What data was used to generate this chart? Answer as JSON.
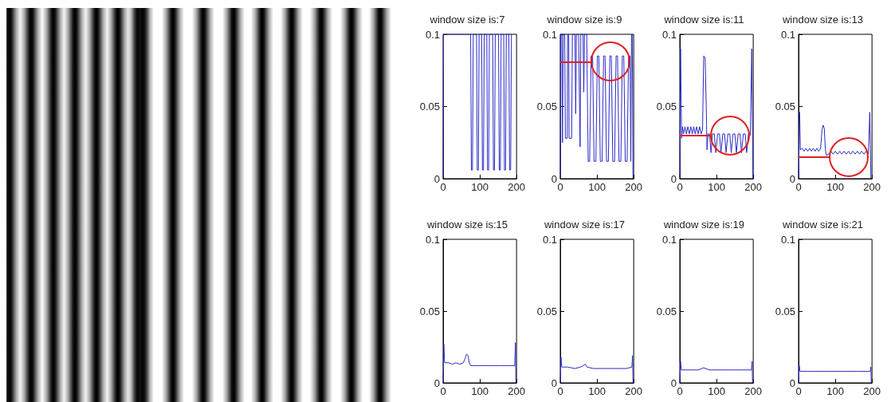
{
  "chart_data": [
    {
      "type": "line",
      "title": "window size is:7",
      "color": "#2b2bc8",
      "xlim": [
        0,
        200
      ],
      "ylim": [
        0,
        0.1
      ],
      "xticks": [
        0,
        100,
        200
      ],
      "yticks": [
        0,
        0.05,
        0.1
      ],
      "grid": false,
      "x": [
        0,
        1,
        75,
        77,
        80,
        82,
        91,
        93,
        96,
        98,
        105,
        107,
        110,
        112,
        119,
        121,
        124,
        126,
        135,
        137,
        140,
        142,
        151,
        153,
        156,
        158,
        165,
        167,
        170,
        172,
        179,
        181,
        184,
        186
      ],
      "values": [
        0,
        0.1,
        0.1,
        0.006,
        0.006,
        0.1,
        0.1,
        0.006,
        0.006,
        0.1,
        0.1,
        0.006,
        0.006,
        0.1,
        0.1,
        0.006,
        0.006,
        0.1,
        0.1,
        0.006,
        0.006,
        0.1,
        0.1,
        0.006,
        0.006,
        0.1,
        0.1,
        0.006,
        0.006,
        0.1,
        0.1,
        0.006,
        0.006,
        0.1
      ]
    },
    {
      "type": "line",
      "title": "window size is:9",
      "color": "#2b2bc8",
      "xlim": [
        0,
        200
      ],
      "ylim": [
        0,
        0.1
      ],
      "xticks": [
        0,
        100,
        200
      ],
      "yticks": [
        0,
        0.05,
        0.1
      ],
      "grid": false,
      "x": [
        0,
        1,
        4,
        6,
        8,
        12,
        14,
        19,
        20,
        23,
        24,
        31,
        33,
        40,
        42,
        44,
        50,
        54,
        56,
        62,
        64,
        66,
        72,
        76,
        80,
        84,
        88,
        92,
        97,
        101,
        105,
        109,
        114,
        118,
        122,
        126,
        131,
        135,
        139,
        143,
        148,
        152,
        156,
        160,
        165,
        169,
        173,
        177,
        182,
        186,
        190,
        192,
        194,
        196,
        198
      ],
      "values": [
        0,
        0.1,
        0.1,
        0.025,
        0.1,
        0.1,
        0.028,
        0.028,
        0.1,
        0.1,
        0.028,
        0.028,
        0.1,
        0.1,
        0.045,
        0.1,
        0.1,
        0.022,
        0.1,
        0.1,
        0.06,
        0.1,
        0.1,
        0.012,
        0.012,
        0.085,
        0.085,
        0.012,
        0.012,
        0.085,
        0.085,
        0.012,
        0.012,
        0.085,
        0.085,
        0.012,
        0.012,
        0.085,
        0.085,
        0.012,
        0.012,
        0.085,
        0.085,
        0.012,
        0.012,
        0.085,
        0.085,
        0.012,
        0.012,
        0.085,
        0.085,
        0.012,
        0.1,
        0.1,
        0
      ],
      "ref_lines": [
        {
          "axis": "y",
          "value": 0.081,
          "color": "#e02020"
        }
      ]
    },
    {
      "type": "line",
      "title": "window size is:11",
      "color": "#2b2bc8",
      "xlim": [
        0,
        200
      ],
      "ylim": [
        0,
        0.1
      ],
      "xticks": [
        0,
        100,
        200
      ],
      "yticks": [
        0,
        0.05,
        0.1
      ],
      "grid": false,
      "x": [
        0,
        2,
        5,
        7,
        10,
        14,
        18,
        22,
        26,
        30,
        34,
        38,
        42,
        46,
        50,
        54,
        58,
        62,
        65,
        69,
        72,
        74,
        77,
        81,
        85,
        89,
        94,
        98,
        103,
        108,
        112,
        117,
        122,
        126,
        131,
        136,
        140,
        145,
        150,
        154,
        159,
        164,
        168,
        173,
        178,
        182,
        187,
        192,
        196,
        199
      ],
      "values": [
        0,
        0.09,
        0.028,
        0.036,
        0.031,
        0.036,
        0.031,
        0.036,
        0.031,
        0.036,
        0.031,
        0.036,
        0.031,
        0.036,
        0.031,
        0.036,
        0.031,
        0.034,
        0.085,
        0.084,
        0.05,
        0.02,
        0.031,
        0.031,
        0.018,
        0.031,
        0.031,
        0.018,
        0.031,
        0.031,
        0.018,
        0.031,
        0.031,
        0.018,
        0.031,
        0.031,
        0.018,
        0.031,
        0.031,
        0.018,
        0.031,
        0.031,
        0.018,
        0.031,
        0.031,
        0.018,
        0.031,
        0.03,
        0.09,
        0
      ],
      "ref_lines": [
        {
          "axis": "y",
          "value": 0.03,
          "color": "#e02020"
        }
      ]
    },
    {
      "type": "line",
      "title": "window size is:13",
      "color": "#2b2bc8",
      "xlim": [
        0,
        200
      ],
      "ylim": [
        0,
        0.1
      ],
      "xticks": [
        0,
        100,
        200
      ],
      "yticks": [
        0,
        0.05,
        0.1
      ],
      "grid": false,
      "x": [
        0,
        3,
        5,
        10,
        15,
        20,
        25,
        30,
        35,
        40,
        45,
        50,
        55,
        60,
        64,
        67,
        70,
        73,
        76,
        82,
        88,
        94,
        100,
        106,
        112,
        118,
        124,
        130,
        136,
        142,
        148,
        154,
        160,
        166,
        172,
        178,
        184,
        190,
        194,
        197
      ],
      "values": [
        0,
        0.046,
        0.02,
        0.021,
        0.019,
        0.021,
        0.019,
        0.021,
        0.019,
        0.021,
        0.019,
        0.021,
        0.019,
        0.021,
        0.034,
        0.037,
        0.035,
        0.02,
        0.016,
        0.017,
        0.019,
        0.017,
        0.019,
        0.017,
        0.019,
        0.017,
        0.019,
        0.017,
        0.019,
        0.017,
        0.019,
        0.017,
        0.019,
        0.017,
        0.019,
        0.017,
        0.019,
        0.017,
        0.046,
        0
      ],
      "ref_lines": [
        {
          "axis": "y",
          "value": 0.015,
          "color": "#e02020"
        }
      ]
    },
    {
      "type": "line",
      "title": "window size is:15",
      "color": "#2b2bc8",
      "xlim": [
        0,
        200
      ],
      "ylim": [
        0,
        0.1
      ],
      "xticks": [
        0,
        100,
        200
      ],
      "yticks": [
        0,
        0.05,
        0.1
      ],
      "grid": false,
      "x": [
        0,
        2,
        4,
        15,
        25,
        35,
        45,
        55,
        60,
        64,
        68,
        71,
        75,
        95,
        115,
        135,
        155,
        175,
        195,
        197,
        198
      ],
      "values": [
        0,
        0.027,
        0.014,
        0.014,
        0.013,
        0.014,
        0.013,
        0.014,
        0.017,
        0.02,
        0.019,
        0.014,
        0.012,
        0.012,
        0.012,
        0.012,
        0.012,
        0.012,
        0.012,
        0.028,
        0
      ]
    },
    {
      "type": "line",
      "title": "window size is:17",
      "color": "#2b2bc8",
      "xlim": [
        0,
        200
      ],
      "ylim": [
        0,
        0.1
      ],
      "xticks": [
        0,
        100,
        200
      ],
      "yticks": [
        0,
        0.05,
        0.1
      ],
      "grid": false,
      "x": [
        0,
        2,
        4,
        20,
        40,
        55,
        63,
        68,
        73,
        90,
        120,
        150,
        180,
        195,
        197,
        198
      ],
      "values": [
        0,
        0.018,
        0.011,
        0.011,
        0.01,
        0.011,
        0.012,
        0.013,
        0.011,
        0.01,
        0.01,
        0.01,
        0.01,
        0.011,
        0.019,
        0
      ]
    },
    {
      "type": "line",
      "title": "window size is:19",
      "color": "#2b2bc8",
      "xlim": [
        0,
        200
      ],
      "ylim": [
        0,
        0.1
      ],
      "xticks": [
        0,
        100,
        200
      ],
      "yticks": [
        0,
        0.05,
        0.1
      ],
      "grid": false,
      "x": [
        0,
        2,
        4,
        30,
        50,
        65,
        80,
        110,
        140,
        170,
        195,
        197,
        198
      ],
      "values": [
        0,
        0.015,
        0.009,
        0.009,
        0.009,
        0.0105,
        0.009,
        0.009,
        0.009,
        0.009,
        0.009,
        0.015,
        0
      ]
    },
    {
      "type": "line",
      "title": "window size is:21",
      "color": "#2b2bc8",
      "xlim": [
        0,
        200
      ],
      "ylim": [
        0,
        0.1
      ],
      "xticks": [
        0,
        100,
        200
      ],
      "yticks": [
        0,
        0.05,
        0.1
      ],
      "grid": false,
      "x": [
        0,
        2,
        4,
        40,
        80,
        120,
        160,
        195,
        197,
        198
      ],
      "values": [
        0,
        0.012,
        0.008,
        0.008,
        0.008,
        0.008,
        0.008,
        0.008,
        0.011,
        0
      ]
    }
  ]
}
